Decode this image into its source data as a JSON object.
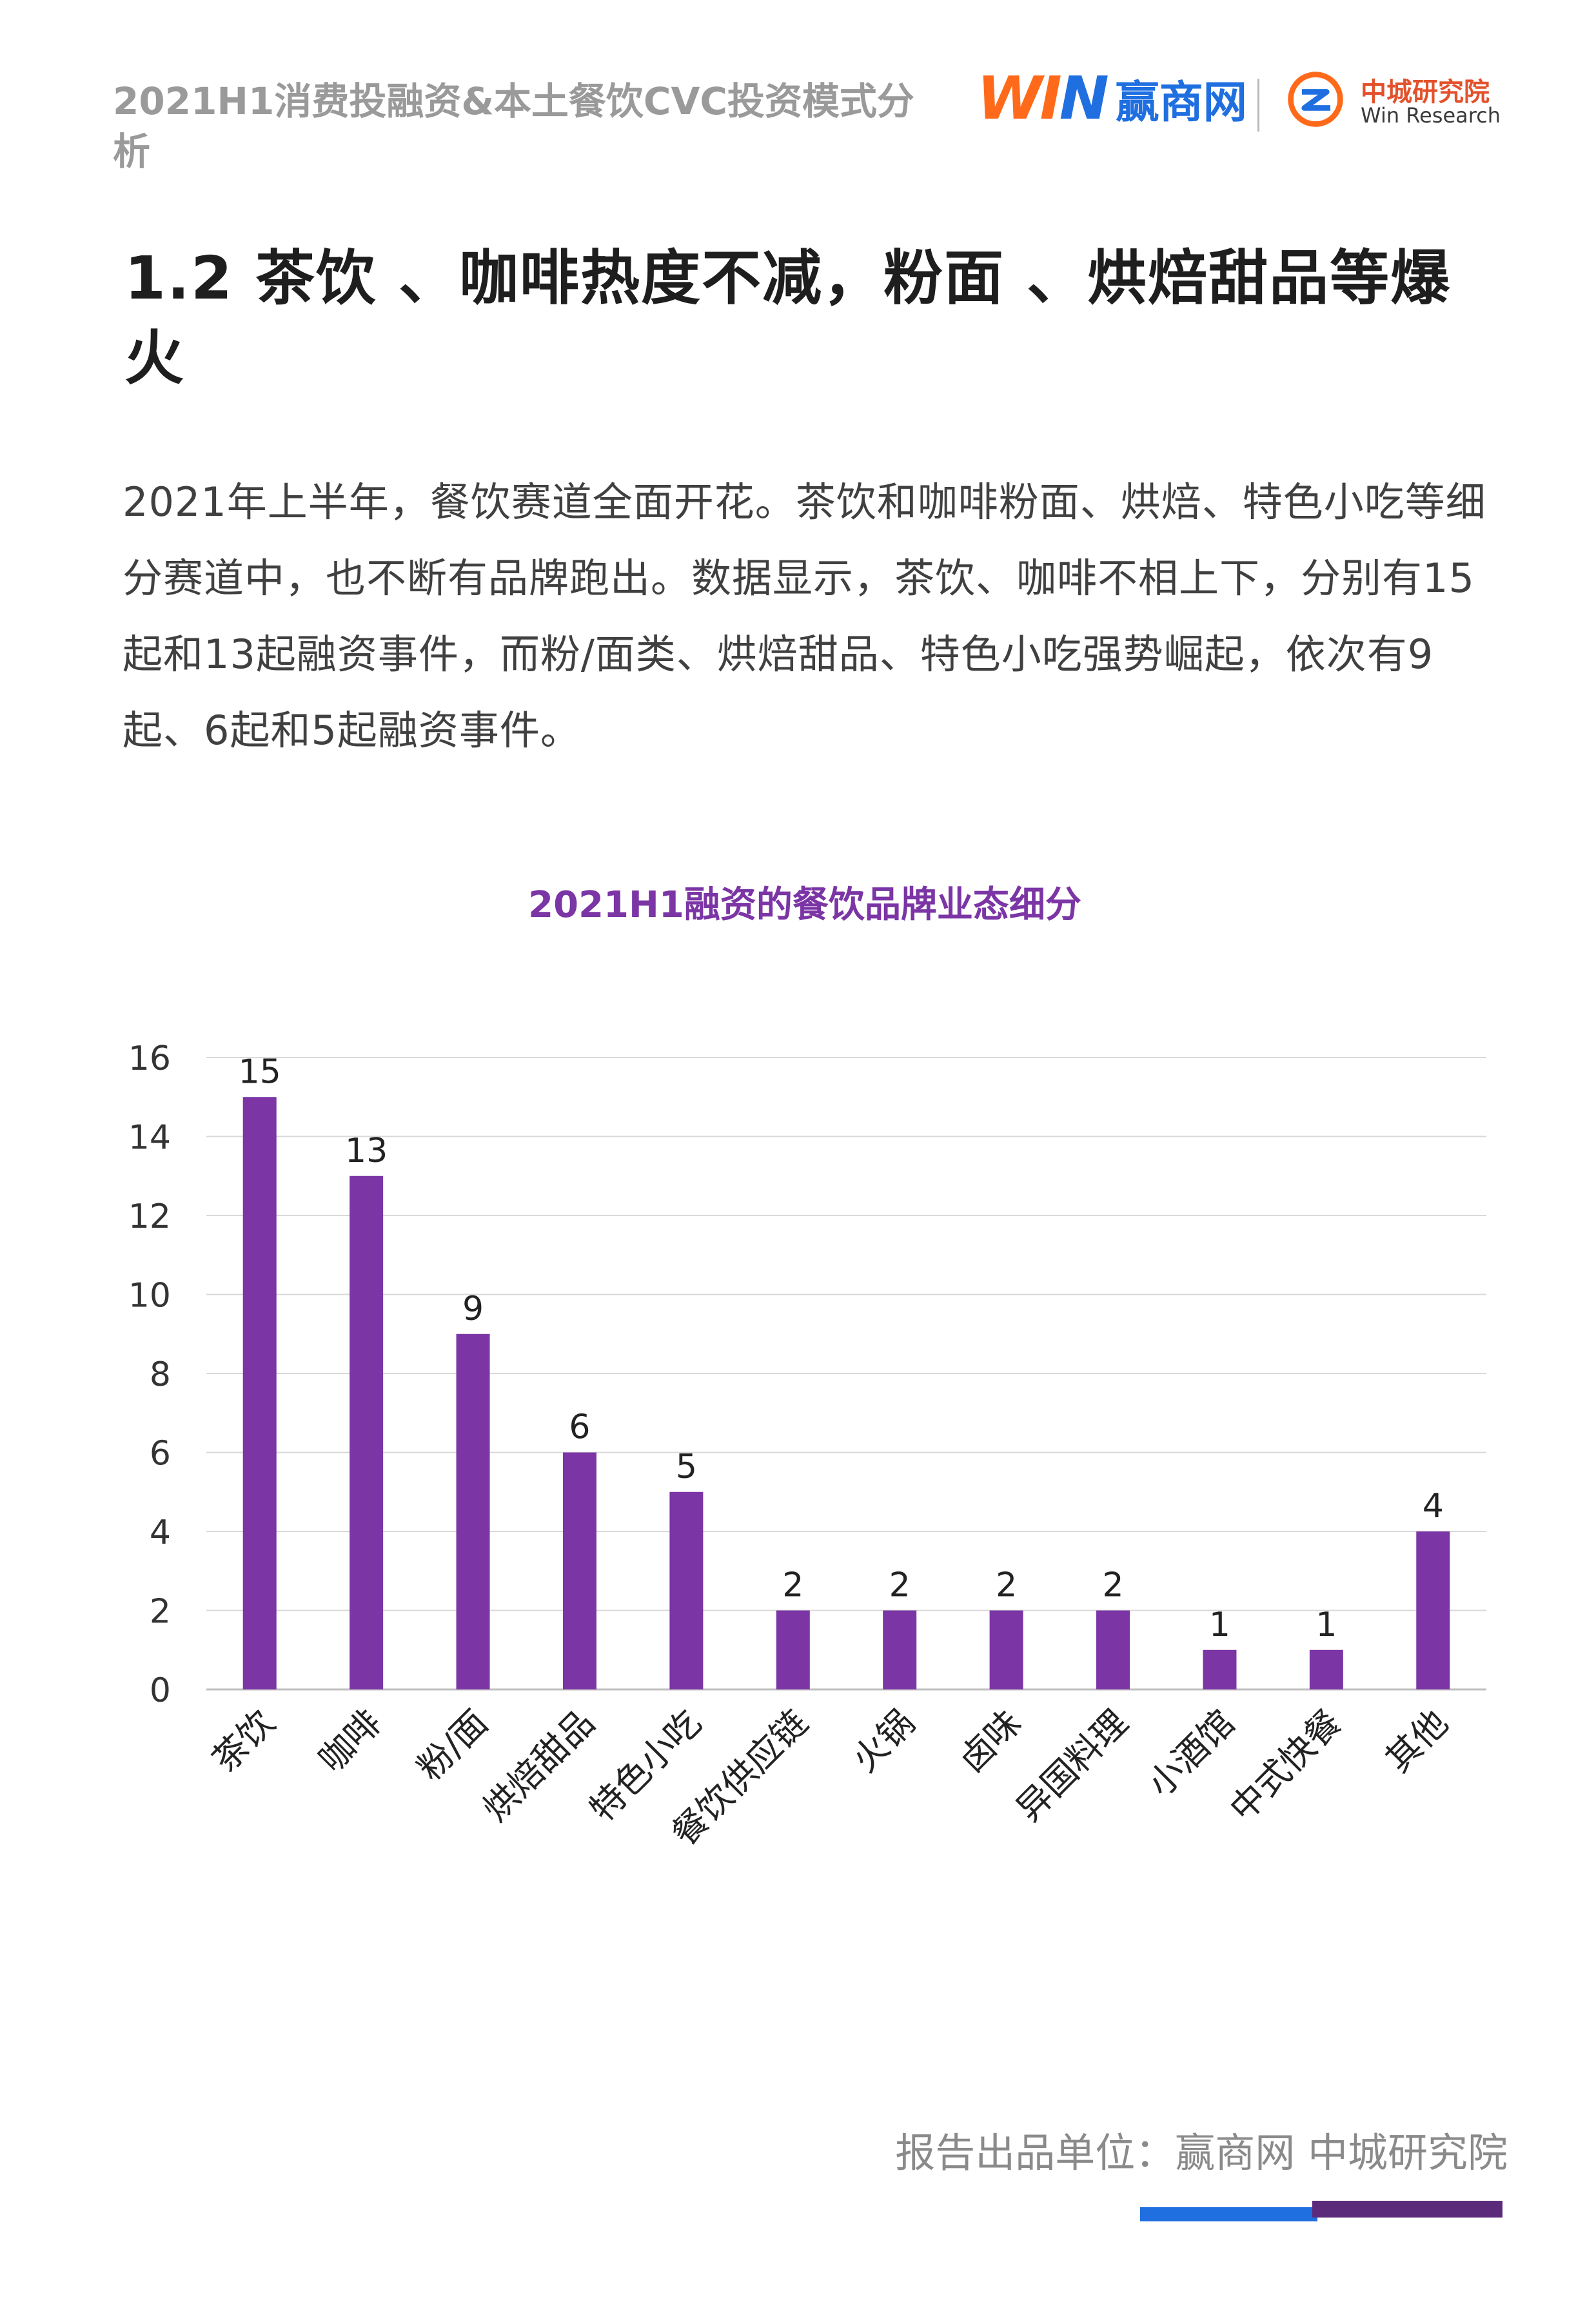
{
  "header": {
    "report_title": "2021H1消费投融资&本土餐饮CVC投资模式分析",
    "logo_win_mark": "WIN",
    "logo_win_name": "赢商网",
    "logo_zc_name": "中城研究院",
    "logo_zc_en": "Win Research"
  },
  "section": {
    "title": "1.2 茶饮 、咖啡热度不减，粉面 、烘焙甜品等爆火"
  },
  "body": {
    "paragraph": "2021年上半年，餐饮赛道全面开花。茶饮和咖啡粉面、烘焙、特色小吃等细分赛道中，也不断有品牌跑出。数据显示，茶饮、咖啡不相上下，分别有15起和13起融资事件，而粉/面类、烘焙甜品、特色小吃强势崛起，依次有9起、6起和5起融资事件。"
  },
  "chart_data": {
    "type": "bar",
    "title": "2021H1融资的餐饮品牌业态细分",
    "categories": [
      "茶饮",
      "咖啡",
      "粉/面",
      "烘焙甜品",
      "特色小吃",
      "餐饮供应链",
      "火锅",
      "卤味",
      "异国料理",
      "小酒馆",
      "中式快餐",
      "其他"
    ],
    "values": [
      15,
      13,
      9,
      6,
      5,
      2,
      2,
      2,
      2,
      1,
      1,
      4
    ],
    "ylim": [
      0,
      16
    ],
    "yticks": [
      0,
      2,
      4,
      6,
      8,
      10,
      12,
      14,
      16
    ],
    "xlabel": "",
    "ylabel": "",
    "grid": true,
    "data_labels": true,
    "bar_color": "#7b35a5",
    "title_color": "#7b35a5"
  },
  "footer": {
    "credit": "报告出品单位：赢商网  中城研究院"
  },
  "colors": {
    "brand_blue": "#1f6fe0",
    "brand_orange": "#ff6a1a",
    "brand_purple": "#5c2a7a"
  }
}
